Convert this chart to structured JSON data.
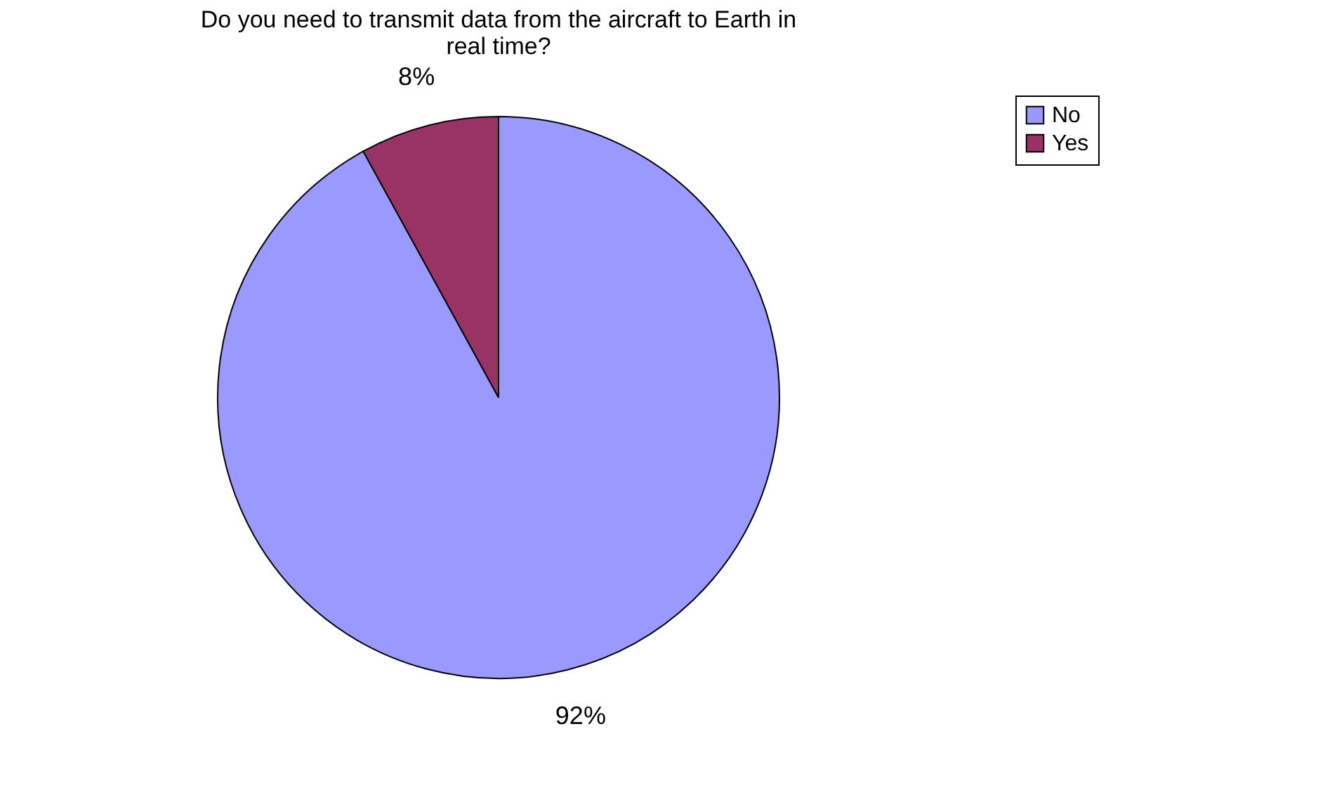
{
  "chart_data": {
    "type": "pie",
    "title": "Do you need to transmit data from the aircraft to Earth in real time?",
    "categories": [
      "No",
      "Yes"
    ],
    "values": [
      92,
      8
    ],
    "colors": [
      "#9999ff",
      "#993366"
    ],
    "value_labels": [
      "92%",
      "8%"
    ],
    "legend": "right"
  }
}
